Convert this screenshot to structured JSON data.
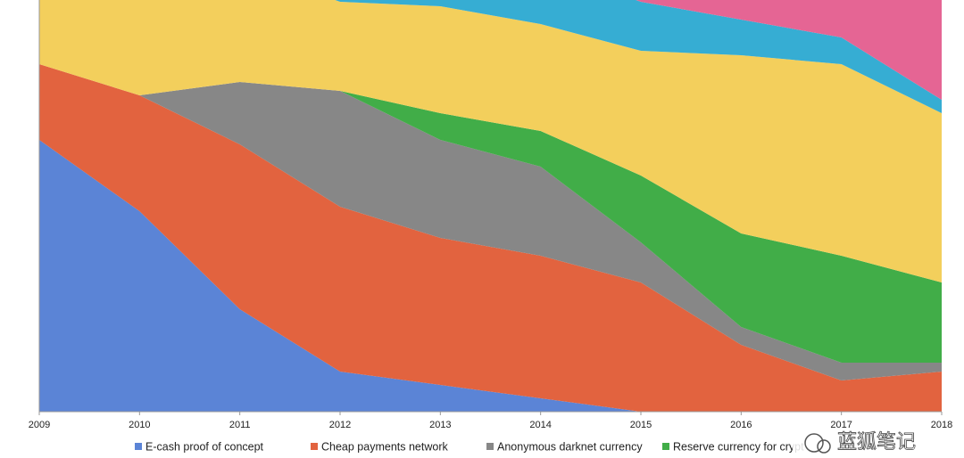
{
  "chart_data": {
    "type": "stacked-area",
    "x": [
      2009,
      2010,
      2011,
      2012,
      2013,
      2014,
      2015,
      2016,
      2017,
      2018
    ],
    "xlim": [
      2009,
      2018
    ],
    "xticks": [
      2009,
      2010,
      2011,
      2012,
      2013,
      2014,
      2015,
      2016,
      2017,
      2018
    ],
    "ylim": [
      0,
      100
    ],
    "series": [
      {
        "name": "E-cash proof of concept",
        "color": "#5b84d6",
        "values": [
          61,
          45,
          23,
          9,
          6,
          3,
          0,
          0,
          0,
          0
        ]
      },
      {
        "name": "Cheap payments network",
        "color": "#e2633f",
        "values": [
          17,
          26,
          37,
          37,
          33,
          32,
          29,
          15,
          7,
          9
        ]
      },
      {
        "name": "Anonymous darknet currency",
        "color": "#878787",
        "values": [
          0,
          0,
          14,
          26,
          22,
          20,
          9,
          4,
          4,
          2
        ]
      },
      {
        "name": "Reserve currency for crypt",
        "color": "#41ad48",
        "values": [
          0,
          0,
          0,
          0,
          6,
          8,
          15,
          21,
          24,
          18
        ]
      },
      {
        "color": "#f3cf5c",
        "values": [
          22,
          29,
          26,
          20,
          24,
          24,
          28,
          40,
          43,
          38
        ]
      },
      {
        "color": "#36add3",
        "values": [
          0,
          0,
          0,
          8,
          9,
          13,
          11,
          8,
          6,
          3
        ]
      },
      {
        "color": "#e56594",
        "values": [
          0,
          0,
          0,
          0,
          0,
          0,
          8,
          12,
          16,
          30
        ]
      }
    ],
    "watermark": "蓝狐笔记"
  }
}
